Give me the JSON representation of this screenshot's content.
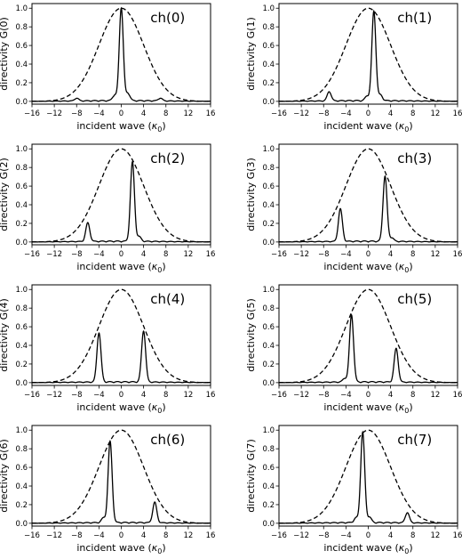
{
  "chart_data": [
    {
      "type": "line",
      "title": "ch(0)",
      "xlabel": "incident wave (",
      "xlabel_symbol": "κ",
      "xlabel_sub": "0",
      "xlabel_tail": ")",
      "ylabel": "directivity G(0)",
      "xlim": [
        -16,
        16
      ],
      "ylim": [
        -0.03,
        1.05
      ],
      "grid": false,
      "xticks": [
        "−16",
        "−12",
        "−8",
        "−4",
        "0",
        "4",
        "8",
        "12",
        "16"
      ],
      "yticks": [
        "0.0",
        "0.2",
        "0.4",
        "0.6",
        "0.8",
        "1.0"
      ],
      "envelope": {
        "style": "dashed",
        "peak": 1.0,
        "center": 0,
        "sigma": 4
      },
      "series": [
        {
          "style": "solid",
          "color": "#000000",
          "peaks": [
            {
              "x": 0,
              "y": 1.0
            },
            {
              "x": -8,
              "y": 0.03
            },
            {
              "x": 1.2,
              "y": 0.08
            },
            {
              "x": -1.2,
              "y": 0.06
            },
            {
              "x": 7,
              "y": 0.03
            }
          ]
        }
      ]
    },
    {
      "type": "line",
      "title": "ch(1)",
      "xlabel": "incident wave (",
      "xlabel_symbol": "κ",
      "xlabel_sub": "0",
      "xlabel_tail": ")",
      "ylabel": "directivity G(1)",
      "xlim": [
        -16,
        16
      ],
      "ylim": [
        -0.03,
        1.05
      ],
      "grid": false,
      "xticks": [
        "−16",
        "−12",
        "−8",
        "−4",
        "0",
        "4",
        "8",
        "12",
        "16"
      ],
      "yticks": [
        "0.0",
        "0.2",
        "0.4",
        "0.6",
        "0.8",
        "1.0"
      ],
      "envelope": {
        "style": "dashed",
        "peak": 1.0,
        "center": 0,
        "sigma": 4
      },
      "series": [
        {
          "style": "solid",
          "color": "#000000",
          "peaks": [
            {
              "x": 1,
              "y": 0.96
            },
            {
              "x": -7,
              "y": 0.1
            },
            {
              "x": 2.2,
              "y": 0.06
            },
            {
              "x": -0.2,
              "y": 0.05
            }
          ]
        }
      ]
    },
    {
      "type": "line",
      "title": "ch(2)",
      "xlabel": "incident wave (",
      "xlabel_symbol": "κ",
      "xlabel_sub": "0",
      "xlabel_tail": ")",
      "ylabel": "directivity G(2)",
      "xlim": [
        -16,
        16
      ],
      "ylim": [
        -0.03,
        1.05
      ],
      "grid": false,
      "xticks": [
        "−16",
        "−12",
        "−8",
        "−4",
        "0",
        "4",
        "8",
        "12",
        "16"
      ],
      "yticks": [
        "0.0",
        "0.2",
        "0.4",
        "0.6",
        "0.8",
        "1.0"
      ],
      "envelope": {
        "style": "dashed",
        "peak": 1.0,
        "center": 0,
        "sigma": 4
      },
      "series": [
        {
          "style": "solid",
          "color": "#000000",
          "peaks": [
            {
              "x": 2,
              "y": 0.85
            },
            {
              "x": -6,
              "y": 0.2
            },
            {
              "x": 3.2,
              "y": 0.05
            }
          ]
        }
      ]
    },
    {
      "type": "line",
      "title": "ch(3)",
      "xlabel": "incident wave (",
      "xlabel_symbol": "κ",
      "xlabel_sub": "0",
      "xlabel_tail": ")",
      "ylabel": "directivity G(3)",
      "xlim": [
        -16,
        16
      ],
      "ylim": [
        -0.03,
        1.05
      ],
      "grid": false,
      "xticks": [
        "−16",
        "−12",
        "−8",
        "−4",
        "0",
        "4",
        "8",
        "12",
        "16"
      ],
      "yticks": [
        "0.0",
        "0.2",
        "0.4",
        "0.6",
        "0.8",
        "1.0"
      ],
      "envelope": {
        "style": "dashed",
        "peak": 1.0,
        "center": 0,
        "sigma": 4
      },
      "series": [
        {
          "style": "solid",
          "color": "#000000",
          "peaks": [
            {
              "x": 3,
              "y": 0.7
            },
            {
              "x": -5,
              "y": 0.35
            },
            {
              "x": 4.2,
              "y": 0.04
            }
          ]
        }
      ]
    },
    {
      "type": "line",
      "title": "ch(4)",
      "xlabel": "incident wave (",
      "xlabel_symbol": "κ",
      "xlabel_sub": "0",
      "xlabel_tail": ")",
      "ylabel": "directivity G(4)",
      "xlim": [
        -16,
        16
      ],
      "ylim": [
        -0.03,
        1.05
      ],
      "grid": false,
      "xticks": [
        "−16",
        "−12",
        "−8",
        "−4",
        "0",
        "4",
        "8",
        "12",
        "16"
      ],
      "yticks": [
        "0.0",
        "0.2",
        "0.4",
        "0.6",
        "0.8",
        "1.0"
      ],
      "envelope": {
        "style": "dashed",
        "peak": 1.0,
        "center": 0,
        "sigma": 4
      },
      "series": [
        {
          "style": "solid",
          "color": "#000000",
          "peaks": [
            {
              "x": -4,
              "y": 0.53
            },
            {
              "x": 4,
              "y": 0.55
            }
          ]
        }
      ]
    },
    {
      "type": "line",
      "title": "ch(5)",
      "xlabel": "incident wave (",
      "xlabel_symbol": "κ",
      "xlabel_sub": "0",
      "xlabel_tail": ")",
      "ylabel": "directivity G(5)",
      "xlim": [
        -16,
        16
      ],
      "ylim": [
        -0.03,
        1.05
      ],
      "grid": false,
      "xticks": [
        "−16",
        "−12",
        "−8",
        "−4",
        "0",
        "4",
        "8",
        "12",
        "16"
      ],
      "yticks": [
        "0.0",
        "0.2",
        "0.4",
        "0.6",
        "0.8",
        "1.0"
      ],
      "envelope": {
        "style": "dashed",
        "peak": 1.0,
        "center": 0,
        "sigma": 4
      },
      "series": [
        {
          "style": "solid",
          "color": "#000000",
          "peaks": [
            {
              "x": -3,
              "y": 0.72
            },
            {
              "x": 5,
              "y": 0.36
            },
            {
              "x": -4.2,
              "y": 0.04
            }
          ]
        }
      ]
    },
    {
      "type": "line",
      "title": "ch(6)",
      "xlabel": "incident wave (",
      "xlabel_symbol": "κ",
      "xlabel_sub": "0",
      "xlabel_tail": ")",
      "ylabel": "directivity G(6)",
      "xlim": [
        -16,
        16
      ],
      "ylim": [
        -0.03,
        1.05
      ],
      "grid": false,
      "xticks": [
        "−16",
        "−12",
        "−8",
        "−4",
        "0",
        "4",
        "8",
        "12",
        "16"
      ],
      "yticks": [
        "0.0",
        "0.2",
        "0.4",
        "0.6",
        "0.8",
        "1.0"
      ],
      "envelope": {
        "style": "dashed",
        "peak": 1.0,
        "center": 0,
        "sigma": 4
      },
      "series": [
        {
          "style": "solid",
          "color": "#000000",
          "peaks": [
            {
              "x": -2,
              "y": 0.87
            },
            {
              "x": 6,
              "y": 0.22
            },
            {
              "x": -3.2,
              "y": 0.05
            }
          ]
        }
      ]
    },
    {
      "type": "line",
      "title": "ch(7)",
      "xlabel": "incident wave (",
      "xlabel_symbol": "κ",
      "xlabel_sub": "0",
      "xlabel_tail": ")",
      "ylabel": "directivity G(7)",
      "xlim": [
        -16,
        16
      ],
      "ylim": [
        -0.03,
        1.05
      ],
      "grid": false,
      "xticks": [
        "−16",
        "−12",
        "−8",
        "−4",
        "0",
        "4",
        "8",
        "12",
        "16"
      ],
      "yticks": [
        "0.0",
        "0.2",
        "0.4",
        "0.6",
        "0.8",
        "1.0"
      ],
      "envelope": {
        "style": "dashed",
        "peak": 1.0,
        "center": 0,
        "sigma": 4
      },
      "series": [
        {
          "style": "solid",
          "color": "#000000",
          "peaks": [
            {
              "x": -1,
              "y": 0.97
            },
            {
              "x": 7,
              "y": 0.11
            },
            {
              "x": 0.2,
              "y": 0.06
            },
            {
              "x": -2.2,
              "y": 0.05
            }
          ]
        }
      ]
    }
  ]
}
